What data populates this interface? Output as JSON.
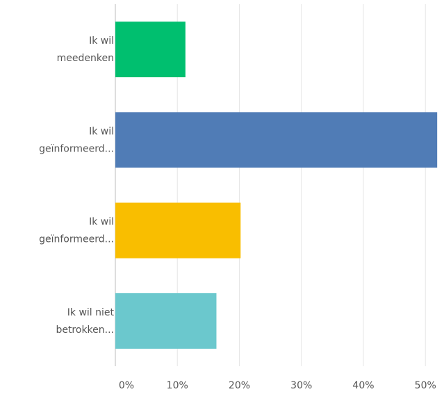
{
  "chart_data": {
    "type": "barh",
    "categories": [
      [
        "Ik wil",
        "meedenken"
      ],
      [
        "Ik wil",
        "geïnformeerd..."
      ],
      [
        "Ik wil",
        "geïnformeerd..."
      ],
      [
        "Ik wil niet",
        "betrokken..."
      ]
    ],
    "values": [
      11.3,
      51.9,
      20.2,
      16.3
    ],
    "colors": [
      "#00bf6f",
      "#507cb6",
      "#f9be00",
      "#6bc8cd"
    ],
    "xlim": [
      0,
      53
    ],
    "xticks": [
      {
        "value": 0,
        "label": "0%"
      },
      {
        "value": 10,
        "label": "10%"
      },
      {
        "value": 20,
        "label": "20%"
      },
      {
        "value": 30,
        "label": "30%"
      },
      {
        "value": 40,
        "label": "40%"
      },
      {
        "value": 50,
        "label": "50%"
      }
    ],
    "grid": true
  }
}
